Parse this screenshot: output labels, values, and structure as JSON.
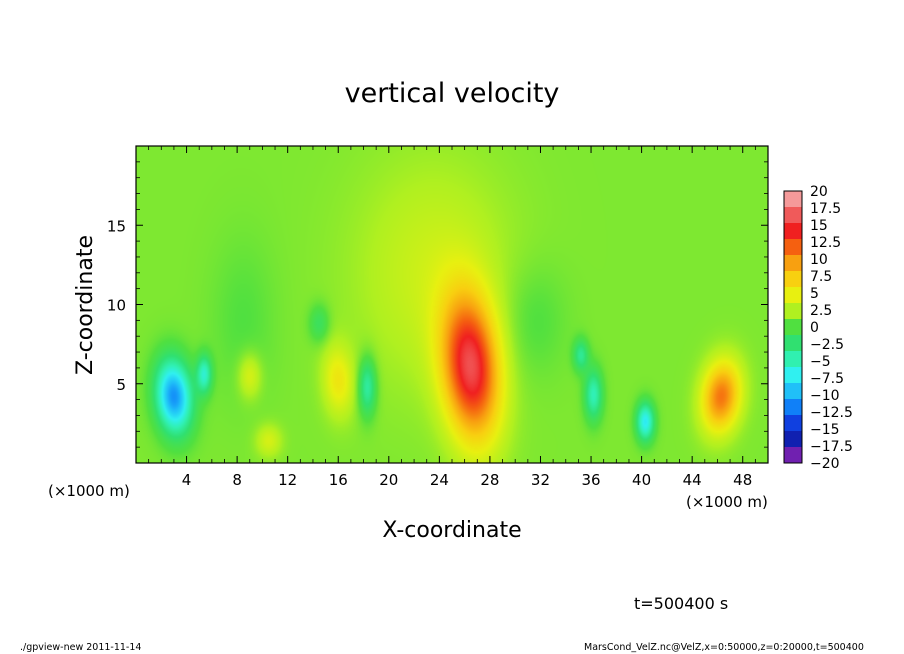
{
  "chart_data": {
    "type": "heatmap",
    "title": "vertical velocity",
    "xlabel": "X-coordinate",
    "ylabel": "Z-coordinate",
    "x_unit_note": "(×1000 m)",
    "x_unit_note_right": "(×1000 m)",
    "xlim": [
      0,
      50
    ],
    "ylim": [
      0,
      20
    ],
    "x_ticks": [
      4,
      8,
      12,
      16,
      20,
      24,
      28,
      32,
      36,
      40,
      44,
      48
    ],
    "x_tick_labels": [
      "4",
      "8",
      "12",
      "16",
      "20",
      "24",
      "28",
      "32",
      "36",
      "40",
      "44",
      "48"
    ],
    "y_ticks": [
      5,
      10,
      15
    ],
    "y_tick_labels": [
      "5",
      "10",
      "15"
    ],
    "colorbar": {
      "levels": [
        20,
        17.5,
        15,
        12.5,
        10,
        7.5,
        5,
        2.5,
        0,
        -2.5,
        -5,
        -7.5,
        -10,
        -12.5,
        -15,
        -17.5,
        -20
      ],
      "labels": [
        "20",
        "17.5",
        "15",
        "12.5",
        "10",
        "7.5",
        "5",
        "2.5",
        "0",
        "−2.5",
        "−5",
        "−7.5",
        "−10",
        "−12.5",
        "−15",
        "−17.5",
        "−20"
      ],
      "colors": [
        "#f59a9a",
        "#f05a5a",
        "#f02020",
        "#f56010",
        "#f8a010",
        "#f8d010",
        "#e8f010",
        "#b0f020",
        "#50e040",
        "#30e070",
        "#30f0b0",
        "#30f0f0",
        "#20c0f8",
        "#1080f8",
        "#1040e0",
        "#1020b0",
        "#7020b0"
      ]
    },
    "background_value": 1.2,
    "features": [
      {
        "name": "updraft-main",
        "x": 26.5,
        "z": 6,
        "rx": 2.2,
        "rz": 4.5,
        "value": 15,
        "tilt": 0.35
      },
      {
        "name": "updraft-right",
        "x": 46.3,
        "z": 4.2,
        "rx": 1.5,
        "rz": 2.2,
        "value": 10.5,
        "tilt": -0.4
      },
      {
        "name": "downdraft-left",
        "x": 3.0,
        "z": 4.2,
        "rx": 1.4,
        "rz": 2.3,
        "value": -13,
        "tilt": 0.3
      },
      {
        "name": "downdraft-left-2",
        "x": 5.4,
        "z": 5.6,
        "rx": 0.6,
        "rz": 1.2,
        "value": -7,
        "tilt": 0
      },
      {
        "name": "downdraft-20",
        "x": 18.3,
        "z": 4.8,
        "rx": 0.7,
        "rz": 1.8,
        "value": -6,
        "tilt": 0
      },
      {
        "name": "downdraft-36",
        "x": 36.2,
        "z": 4.3,
        "rx": 0.7,
        "rz": 1.6,
        "value": -6.5,
        "tilt": 0
      },
      {
        "name": "downdraft-40",
        "x": 40.3,
        "z": 2.6,
        "rx": 0.7,
        "rz": 1.2,
        "value": -9,
        "tilt": 0
      },
      {
        "name": "weak-down-35",
        "x": 35.2,
        "z": 6.8,
        "rx": 0.6,
        "rz": 1.0,
        "value": -5,
        "tilt": 0
      },
      {
        "name": "weak-down-14",
        "x": 14.5,
        "z": 8.8,
        "rx": 0.8,
        "rz": 1.2,
        "value": -3,
        "tilt": 0
      },
      {
        "name": "weak-up-16",
        "x": 16.0,
        "z": 5.2,
        "rx": 1.2,
        "rz": 2.2,
        "value": 4.5,
        "tilt": 0.2
      },
      {
        "name": "weak-up-9",
        "x": 9.0,
        "z": 5.5,
        "rx": 0.9,
        "rz": 1.4,
        "value": 3.5,
        "tilt": 0
      },
      {
        "name": "weak-up-10",
        "x": 10.5,
        "z": 1.4,
        "rx": 1.0,
        "rz": 1.0,
        "value": 3,
        "tilt": 0
      },
      {
        "name": "broad-up-24",
        "x": 23.5,
        "z": 12,
        "rx": 6,
        "rz": 7,
        "value": 2.5,
        "tilt": 0
      },
      {
        "name": "broad-down-32",
        "x": 31.5,
        "z": 9,
        "rx": 2.5,
        "rz": 3.5,
        "value": -1.5,
        "tilt": 0
      },
      {
        "name": "broad-down-8",
        "x": 8.5,
        "z": 9,
        "rx": 2.5,
        "rz": 5,
        "value": -1.2,
        "tilt": 0
      }
    ]
  },
  "footer": {
    "time_label": "t=500400 s",
    "program_label": "./gpview-new  2011-11-14",
    "source_label": "MarsCond_VelZ.nc@VelZ,x=0:50000,z=0:20000,t=500400"
  }
}
